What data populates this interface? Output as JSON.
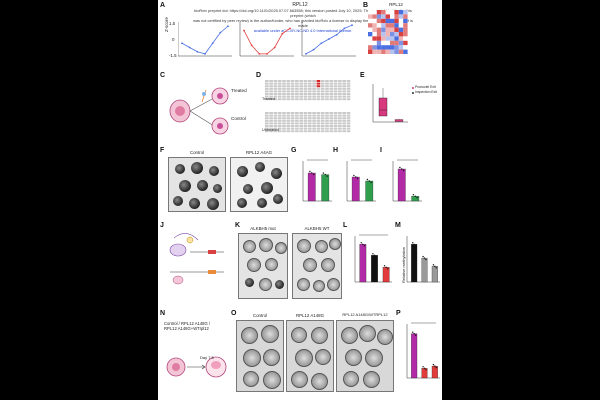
{
  "header": {
    "gene_title": "RPL12",
    "heat_title": "RPL12"
  },
  "banner": {
    "line1": "bioRxiv preprint doi: https://doi.org/10.1101/2025.07.07.663558; this version posted July 10, 2025. The copyright holder for this preprint (which",
    "line2": "was not certified by peer review) is the author/funder, who has granted bioRxiv a license to display the preprint in perpetuity. It is made",
    "line3": "available under aCC-BY-NC-ND 4.0 International license."
  },
  "panels": {
    "A": "A",
    "B": "B",
    "C": "C",
    "D": "D",
    "E": "E",
    "F": "F",
    "G": "G",
    "H": "H",
    "I": "I",
    "J": "J",
    "K": "K",
    "L": "L",
    "M": "M",
    "N": "N",
    "O": "O",
    "P": "P"
  },
  "panelA": {
    "ylabel": "Z-score",
    "yticks": [
      "1.5",
      "0",
      "-1.5"
    ]
  },
  "panelC": {
    "treated": "Treated",
    "control": "Control"
  },
  "panelD": {
    "treated": "Treated",
    "untreated": "Untreated"
  },
  "panelE": {
    "legend": [
      "Pronuclei Exit",
      "Inspection Exit"
    ]
  },
  "panelF": {
    "left": "Control",
    "right": "RPL12 A4AG"
  },
  "panelK": {
    "left": "ALKBH5 mut",
    "right": "ALKBH5 WT"
  },
  "panelM": {
    "ylabel": "Relative methylation"
  },
  "panelN": {
    "text": "Control / RPL12 A148G / RPL12 A148G+WTrpl12",
    "day": "Day 7.5"
  },
  "panelO": {
    "left": "Control",
    "mid": "RPL12 A148G",
    "right": "RPL12 A148G/WTRPL12"
  },
  "colors": {
    "blue": "#4a6fe3",
    "red": "#e23b3b",
    "magenta": "#b32aa6",
    "green": "#2f9e4d",
    "black": "#111111",
    "gray": "#9a9a9a",
    "link": "#1a3fd1"
  },
  "chart_data": [
    {
      "type": "line",
      "id": "A1",
      "series": [
        {
          "values": [
            -0.4,
            -0.8,
            -1.2,
            -1.4,
            -0.4,
            0.6,
            1.2
          ]
        }
      ]
    },
    {
      "type": "line",
      "id": "A2",
      "series": [
        {
          "values": [
            0.8,
            -0.6,
            -1.4,
            -1.4,
            -0.8,
            0.5,
            1.0
          ]
        }
      ]
    },
    {
      "type": "line",
      "id": "A3",
      "series": [
        {
          "values": [
            -1.4,
            -1.0,
            -0.4,
            0.0,
            0.4,
            1.0,
            1.3
          ]
        }
      ]
    },
    {
      "type": "bar",
      "id": "G",
      "series": [
        {
          "values": [
            0.7,
            0.66
          ]
        }
      ]
    },
    {
      "type": "bar",
      "id": "H",
      "series": [
        {
          "values": [
            0.6,
            0.5
          ]
        }
      ]
    },
    {
      "type": "bar",
      "id": "I",
      "series": [
        {
          "values": [
            0.8,
            0.12
          ]
        }
      ]
    },
    {
      "type": "bar",
      "id": "L",
      "series": [
        {
          "values": [
            0.82,
            0.58,
            0.32
          ]
        }
      ]
    },
    {
      "type": "bar",
      "id": "M",
      "series": [
        {
          "values": [
            0.82,
            0.52,
            0.34
          ]
        }
      ]
    },
    {
      "type": "bar",
      "id": "P",
      "series": [
        {
          "values": [
            0.82,
            0.18,
            0.22
          ]
        }
      ]
    }
  ]
}
